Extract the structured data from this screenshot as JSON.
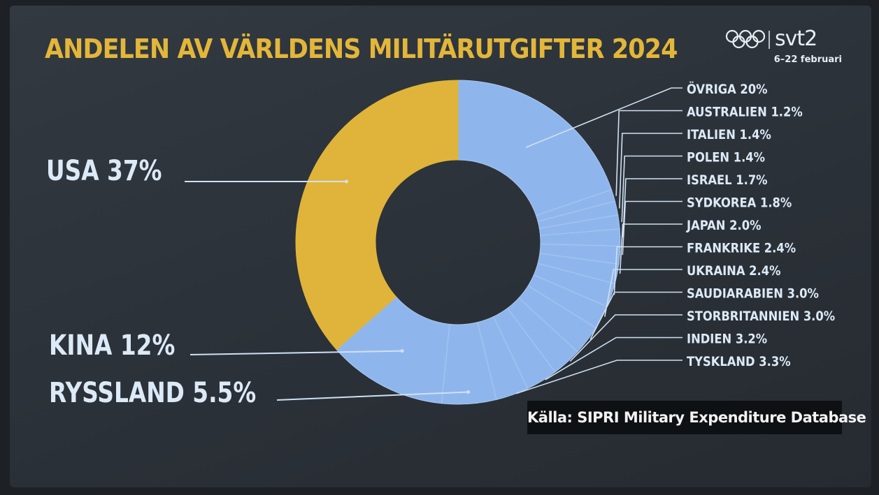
{
  "title": "ANDELEN AV VÄRLDENS MILITÄRUTGIFTER 2024",
  "logo": {
    "brand": "svt2",
    "dates": "6–22 februari",
    "icon": "olympic-rings-icon"
  },
  "source": "Källa: SIPRI Military Expenditure Database",
  "colors": {
    "title": "#e3b63a",
    "usa": "#e0b43a",
    "others": "#8fb6ec",
    "label": "#dce9f7",
    "line": "#cfe0f2"
  },
  "chart_data": {
    "type": "pie",
    "title": "ANDELEN AV VÄRLDENS MILITÄRUTGIFTER 2024",
    "slices": [
      {
        "label": "ÖVRIGA",
        "value": 20,
        "display": "ÖVRIGA 20%"
      },
      {
        "label": "AUSTRALIEN",
        "value": 1.2,
        "display": "AUSTRALIEN 1.2%"
      },
      {
        "label": "ITALIEN",
        "value": 1.4,
        "display": "ITALIEN 1.4%"
      },
      {
        "label": "POLEN",
        "value": 1.4,
        "display": "POLEN 1.4%"
      },
      {
        "label": "ISRAEL",
        "value": 1.7,
        "display": "ISRAEL 1.7%"
      },
      {
        "label": "SYDKOREA",
        "value": 1.8,
        "display": "SYDKOREA 1.8%"
      },
      {
        "label": "JAPAN",
        "value": 2.0,
        "display": "JAPAN 2.0%"
      },
      {
        "label": "FRANKRIKE",
        "value": 2.4,
        "display": "FRANKRIKE 2.4%"
      },
      {
        "label": "UKRAINA",
        "value": 2.4,
        "display": "UKRAINA 2.4%"
      },
      {
        "label": "SAUDIARABIEN",
        "value": 3.0,
        "display": "SAUDIARABIEN 3.0%"
      },
      {
        "label": "STORBRITANNIEN",
        "value": 3.0,
        "display": "STORBRITANNIEN 3.0%"
      },
      {
        "label": "INDIEN",
        "value": 3.2,
        "display": "INDIEN 3.2%"
      },
      {
        "label": "TYSKLAND",
        "value": 3.3,
        "display": "TYSKLAND 3.3%"
      },
      {
        "label": "RYSSLAND",
        "value": 5.5,
        "display_name": "RYSSLAND",
        "display_value": "5.5%"
      },
      {
        "label": "KINA",
        "value": 12,
        "display_name": "KINA",
        "display_value": "12%"
      },
      {
        "label": "USA",
        "value": 37,
        "display_name": "USA",
        "display_value": "37%"
      }
    ]
  }
}
